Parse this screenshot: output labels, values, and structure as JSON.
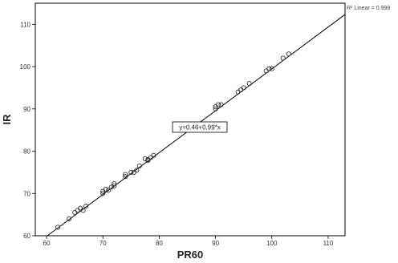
{
  "chart_data": {
    "type": "scatter",
    "title": "",
    "xlabel": "PR60",
    "ylabel": "IR",
    "xlim": [
      58,
      113
    ],
    "ylim": [
      60,
      115
    ],
    "xticks": [
      60,
      70,
      80,
      90,
      100,
      110
    ],
    "yticks": [
      60,
      70,
      80,
      90,
      100,
      110
    ],
    "xtick_labels": [
      "60",
      "70",
      "80",
      "90",
      "100",
      "110"
    ],
    "ytick_labels": [
      "60",
      "70",
      "80",
      "90",
      "100",
      "110"
    ],
    "grid": false,
    "fit_line": {
      "intercept": 0.46,
      "slope": 0.99,
      "equation_label": "y=0.46+0.99*x",
      "r2_label": "R² Linear = 0.998"
    },
    "series": [
      {
        "marker": "open-circle",
        "points": [
          [
            62,
            62
          ],
          [
            64,
            64
          ],
          [
            65,
            65.5
          ],
          [
            65.5,
            66
          ],
          [
            66,
            66.5
          ],
          [
            66.5,
            66
          ],
          [
            67,
            67
          ],
          [
            70,
            70
          ],
          [
            70,
            70.5
          ],
          [
            70.5,
            71
          ],
          [
            71,
            70.8
          ],
          [
            71.5,
            71.5
          ],
          [
            72,
            71.8
          ],
          [
            72,
            72.3
          ],
          [
            74,
            74
          ],
          [
            74,
            74.5
          ],
          [
            75,
            75
          ],
          [
            75.5,
            75
          ],
          [
            76,
            75.5
          ],
          [
            76.5,
            76.5
          ],
          [
            77.5,
            78.2
          ],
          [
            78,
            77.8
          ],
          [
            78,
            78
          ],
          [
            78.5,
            78.5
          ],
          [
            79,
            79
          ],
          [
            90,
            90
          ],
          [
            90,
            90.5
          ],
          [
            90.5,
            91
          ],
          [
            91,
            91
          ],
          [
            94,
            94
          ],
          [
            94.5,
            94.5
          ],
          [
            95,
            95
          ],
          [
            96,
            96
          ],
          [
            99,
            99
          ],
          [
            99.5,
            99.5
          ],
          [
            100,
            99.5
          ],
          [
            102,
            102
          ],
          [
            103,
            103
          ]
        ]
      }
    ]
  }
}
